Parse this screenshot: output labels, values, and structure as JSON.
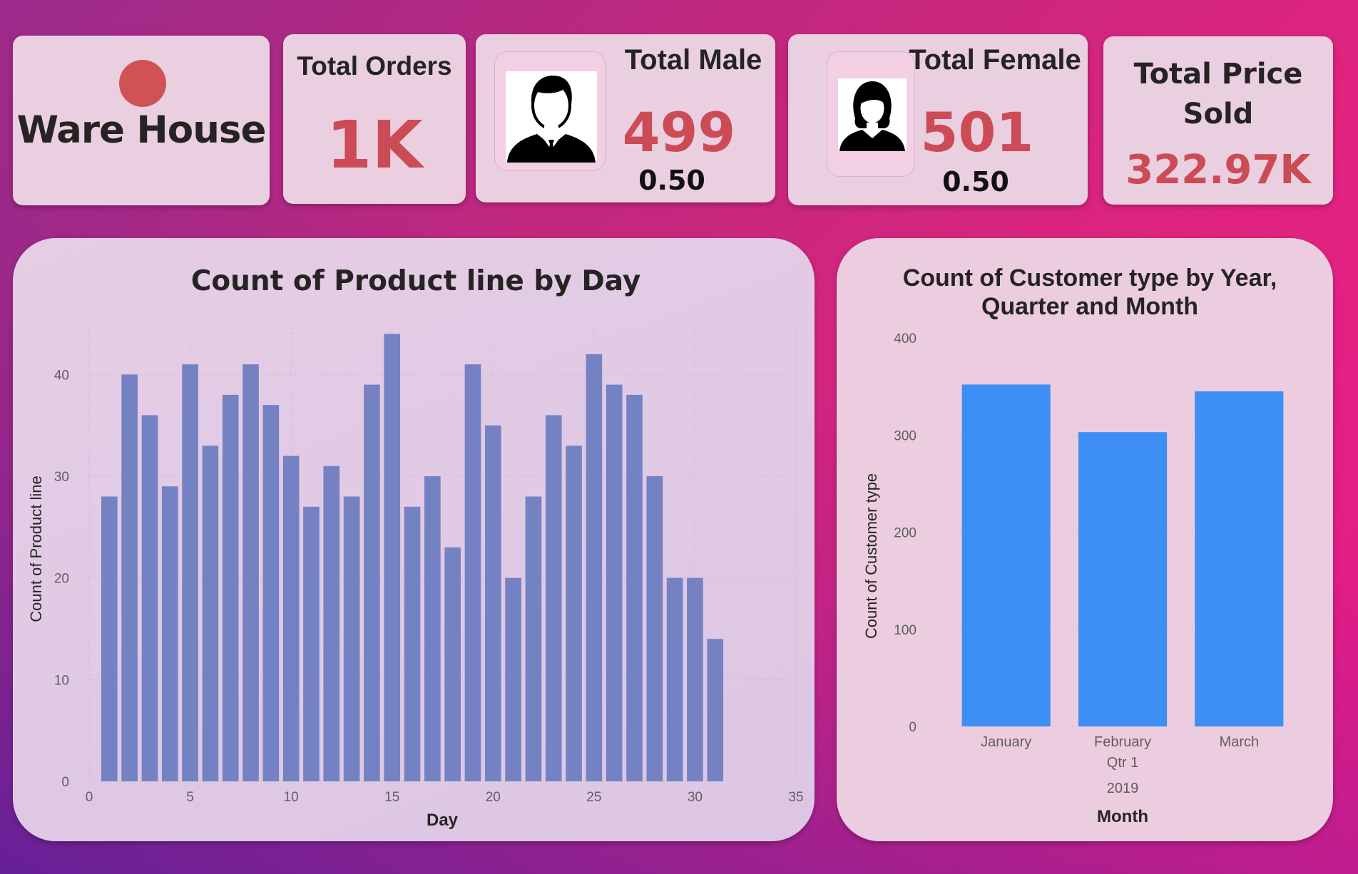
{
  "cards": {
    "warehouse": {
      "title": "Ware House",
      "dot_color": "#d05255"
    },
    "total_orders": {
      "label": "Total Orders",
      "value": "1K"
    },
    "total_male": {
      "label": "Total Male",
      "value": "499",
      "ratio": "0.50",
      "icon": "male-avatar-icon"
    },
    "total_female": {
      "label": "Total Female",
      "value": "501",
      "ratio": "0.50",
      "icon": "female-avatar-icon"
    },
    "total_price": {
      "label_line1": "Total Price",
      "label_line2": "Sold",
      "value": "322.97K"
    }
  },
  "colors": {
    "accent_red": "#cc4b55",
    "bar_purple": "#7482c4",
    "bar_blue": "#3d8ef5"
  },
  "chart_data": [
    {
      "type": "bar",
      "title": "Count of Product line by Day",
      "xlabel": "Day",
      "ylabel": "Count of Product line",
      "x": [
        1,
        2,
        3,
        4,
        5,
        6,
        7,
        8,
        9,
        10,
        11,
        12,
        13,
        14,
        15,
        16,
        17,
        18,
        19,
        20,
        21,
        22,
        23,
        24,
        25,
        26,
        27,
        28,
        29,
        30,
        31
      ],
      "values": [
        28,
        40,
        36,
        29,
        41,
        33,
        38,
        41,
        37,
        32,
        27,
        31,
        28,
        39,
        44,
        27,
        30,
        23,
        41,
        35,
        20,
        28,
        36,
        33,
        42,
        39,
        38,
        30,
        20,
        20,
        14
      ],
      "xlim": [
        0,
        35
      ],
      "ylim": [
        0,
        45
      ],
      "x_ticks": [
        "0",
        "5",
        "10",
        "15",
        "20",
        "25",
        "30",
        "35"
      ],
      "y_ticks": [
        "0",
        "10",
        "20",
        "30",
        "40"
      ],
      "grid": true,
      "color": "#7482c4"
    },
    {
      "type": "bar",
      "title": "Count of Customer type by Year, Quarter and Month",
      "xlabel": "Month",
      "ylabel": "Count of Customer type",
      "categories": [
        "January",
        "February",
        "March"
      ],
      "values": [
        352,
        303,
        345
      ],
      "group_quarter": "Qtr 1",
      "group_year": "2019",
      "ylim": [
        0,
        400
      ],
      "y_ticks": [
        "0",
        "100",
        "200",
        "300",
        "400"
      ],
      "grid": true,
      "color": "#3d8ef5"
    }
  ]
}
